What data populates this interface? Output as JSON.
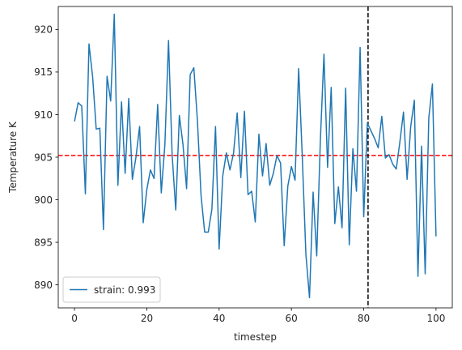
{
  "chart_data": {
    "type": "line",
    "xlabel": "timestep",
    "ylabel": "Temperature K",
    "xlim": [
      -4.5,
      104.5
    ],
    "ylim": [
      887.3,
      922.7
    ],
    "xticks": [
      0,
      20,
      40,
      60,
      80,
      100
    ],
    "yticks": [
      890,
      895,
      900,
      905,
      910,
      915,
      920
    ],
    "grid": false,
    "legend_position": "lower-left",
    "series": [
      {
        "name": "strain: 0.993",
        "color": "#1f77b4",
        "x": [
          0,
          1,
          2,
          3,
          4,
          5,
          6,
          7,
          8,
          9,
          10,
          11,
          12,
          13,
          14,
          15,
          16,
          17,
          18,
          19,
          20,
          21,
          22,
          23,
          24,
          25,
          26,
          27,
          28,
          29,
          30,
          31,
          32,
          33,
          34,
          35,
          36,
          37,
          38,
          39,
          40,
          41,
          42,
          43,
          44,
          45,
          46,
          47,
          48,
          49,
          50,
          51,
          52,
          53,
          54,
          55,
          56,
          57,
          58,
          59,
          60,
          61,
          62,
          63,
          64,
          65,
          66,
          67,
          68,
          69,
          70,
          71,
          72,
          73,
          74,
          75,
          76,
          77,
          78,
          79,
          80,
          81,
          82,
          83,
          84,
          85,
          86,
          87,
          88,
          89,
          90,
          91,
          92,
          93,
          94,
          95,
          96,
          97,
          98,
          99,
          100
        ],
        "y": [
          909.2,
          911.4,
          911.0,
          900.7,
          918.3,
          914.5,
          908.3,
          908.4,
          896.5,
          914.5,
          911.6,
          921.8,
          901.7,
          911.5,
          903.1,
          911.9,
          902.4,
          905.0,
          908.6,
          897.3,
          901.2,
          903.5,
          902.5,
          911.2,
          900.8,
          906.5,
          918.7,
          905.3,
          898.8,
          909.9,
          906.5,
          901.3,
          914.7,
          915.5,
          909.3,
          900.5,
          896.2,
          896.2,
          898.9,
          908.6,
          894.2,
          902.8,
          905.5,
          903.5,
          905.5,
          910.2,
          902.6,
          910.4,
          900.6,
          901.0,
          897.4,
          907.7,
          902.8,
          906.6,
          901.7,
          903.1,
          905.2,
          904.3,
          894.6,
          901.6,
          903.9,
          902.3,
          915.4,
          905.1,
          893.6,
          888.5,
          900.9,
          893.4,
          906.9,
          917.1,
          903.8,
          913.2,
          897.2,
          901.5,
          896.7,
          913.1,
          894.7,
          906.0,
          901.0,
          917.9,
          898.0,
          909.0,
          908.1,
          907.2,
          906.1,
          909.8,
          904.9,
          905.3,
          904.2,
          903.6,
          906.8,
          910.3,
          902.4,
          908.6,
          911.7,
          891.0,
          906.3,
          891.3,
          909.6,
          913.6,
          895.7
        ]
      }
    ],
    "reference_lines": [
      {
        "orientation": "horizontal",
        "value": 905.2,
        "color": "#ff0000",
        "style": "dashed"
      },
      {
        "orientation": "vertical",
        "value": 81.2,
        "color": "#000000",
        "style": "dashed"
      }
    ]
  }
}
